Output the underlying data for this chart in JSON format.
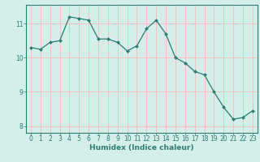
{
  "x": [
    0,
    1,
    2,
    3,
    4,
    5,
    6,
    7,
    8,
    9,
    10,
    11,
    12,
    13,
    14,
    15,
    16,
    17,
    18,
    19,
    20,
    21,
    22,
    23
  ],
  "y": [
    10.3,
    10.25,
    10.45,
    10.5,
    11.2,
    11.15,
    11.1,
    10.55,
    10.55,
    10.45,
    10.2,
    10.35,
    10.85,
    11.1,
    10.7,
    10.0,
    9.85,
    9.6,
    9.5,
    9.0,
    8.55,
    8.2,
    8.25,
    8.45
  ],
  "bg_color": "#d4eeea",
  "line_color": "#2e7d72",
  "marker_color": "#2e7d72",
  "grid_color": "#f5c0c0",
  "axis_color": "#2e7d72",
  "tick_color": "#2e7d72",
  "text_color": "#2e7d72",
  "xlabel": "Humidex (Indice chaleur)",
  "ylim": [
    7.8,
    11.55
  ],
  "yticks": [
    8,
    9,
    10,
    11
  ],
  "xticks": [
    0,
    1,
    2,
    3,
    4,
    5,
    6,
    7,
    8,
    9,
    10,
    11,
    12,
    13,
    14,
    15,
    16,
    17,
    18,
    19,
    20,
    21,
    22,
    23
  ],
  "label_fontsize": 6.5,
  "tick_fontsize": 5.5
}
